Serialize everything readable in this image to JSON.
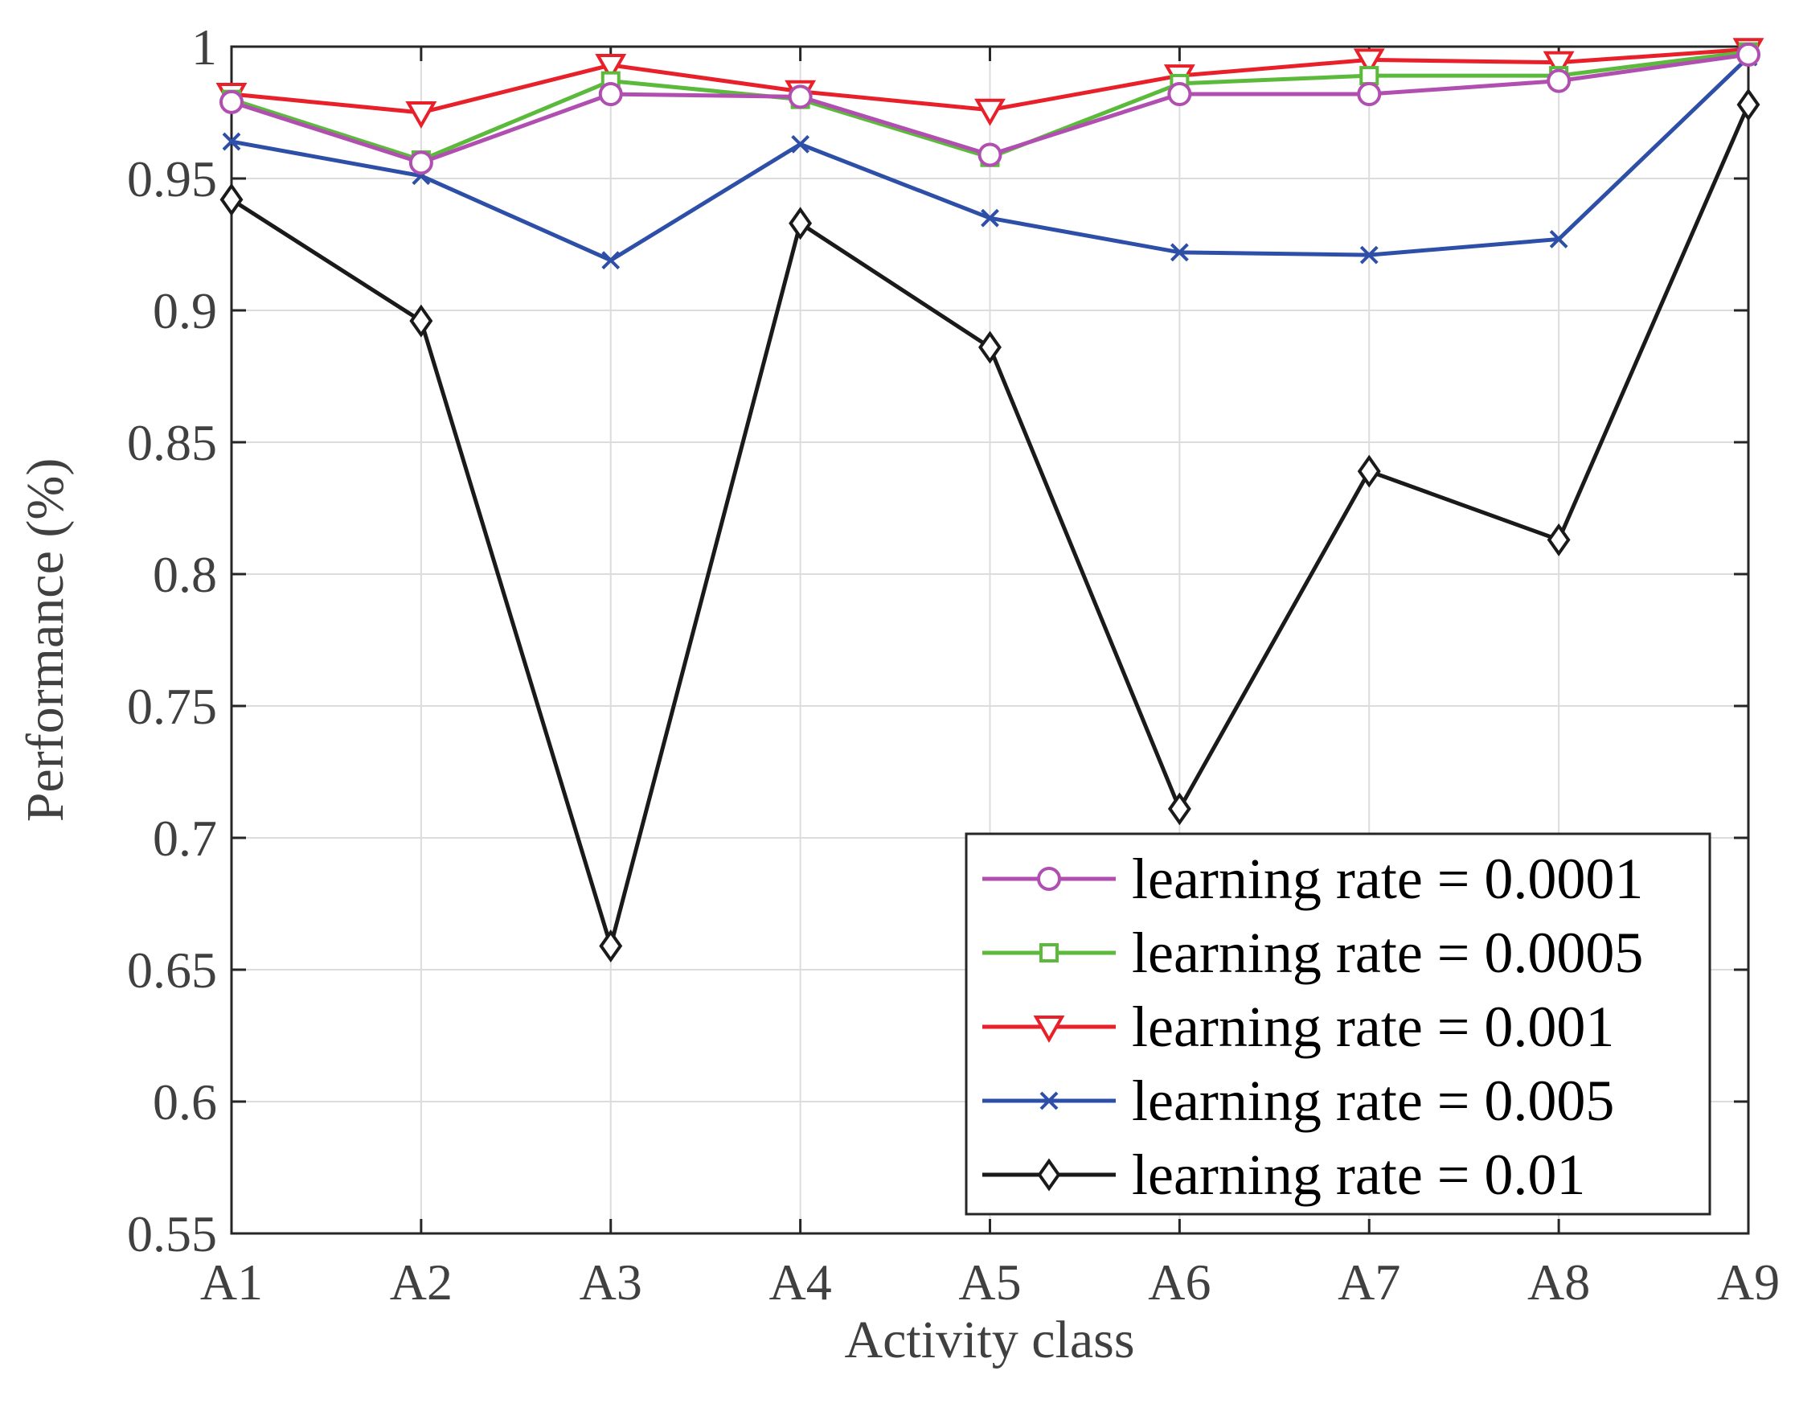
{
  "chart_data": {
    "type": "line",
    "title": "",
    "xlabel": "Activity class",
    "ylabel": "Performance (%)",
    "categories": [
      "A1",
      "A2",
      "A3",
      "A4",
      "A5",
      "A6",
      "A7",
      "A8",
      "A9"
    ],
    "ylim": [
      0.55,
      1
    ],
    "yticks": [
      0.55,
      0.6,
      0.65,
      0.7,
      0.75,
      0.8,
      0.85,
      0.9,
      0.95,
      1
    ],
    "ytick_labels": [
      "0.55",
      "0.6",
      "0.65",
      "0.7",
      "0.75",
      "0.8",
      "0.85",
      "0.9",
      "0.95",
      "1"
    ],
    "grid": true,
    "legend_position": "bottom-right",
    "series": [
      {
        "name": "learning rate = 0.0001",
        "color": "#b04fb0",
        "marker": "circle",
        "values": [
          0.979,
          0.956,
          0.982,
          0.981,
          0.959,
          0.982,
          0.982,
          0.987,
          0.997
        ]
      },
      {
        "name": "learning rate = 0.0005",
        "color": "#5bba3c",
        "marker": "square",
        "values": [
          0.98,
          0.957,
          0.987,
          0.98,
          0.958,
          0.986,
          0.989,
          0.989,
          0.998
        ]
      },
      {
        "name": "learning rate = 0.001",
        "color": "#e8202a",
        "marker": "triangle-down",
        "values": [
          0.982,
          0.975,
          0.993,
          0.983,
          0.976,
          0.989,
          0.995,
          0.994,
          0.999
        ]
      },
      {
        "name": "learning rate = 0.005",
        "color": "#2e4fa8",
        "marker": "x",
        "values": [
          0.964,
          0.951,
          0.919,
          0.963,
          0.935,
          0.922,
          0.921,
          0.927,
          0.996
        ]
      },
      {
        "name": "learning rate = 0.01",
        "color": "#1a1a1a",
        "marker": "diamond",
        "values": [
          0.942,
          0.896,
          0.659,
          0.933,
          0.886,
          0.711,
          0.839,
          0.813,
          0.978
        ]
      }
    ]
  }
}
